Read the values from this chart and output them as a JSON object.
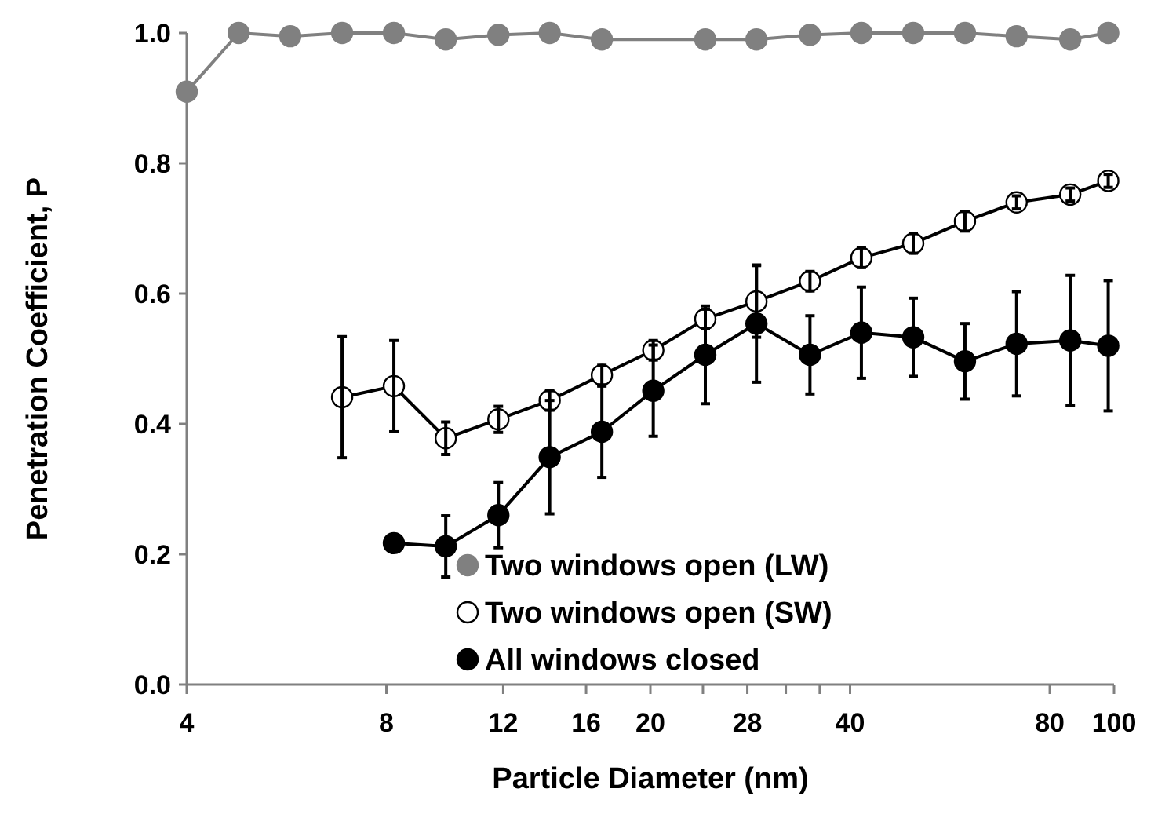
{
  "chart_data": {
    "type": "line",
    "xlabel": "Particle Diameter (nm)",
    "ylabel": "Penetration Coefficient, P",
    "log": "x",
    "marker": "circle",
    "legend": "bottom",
    "grid": false,
    "xlim": [
      4,
      100
    ],
    "xticks": [
      4,
      8,
      12,
      16,
      20,
      {
        "value": 24,
        "label": null
      },
      28,
      {
        "value": 32,
        "label": null
      },
      {
        "value": 36,
        "label": null
      },
      40,
      80,
      100
    ],
    "ylim": [
      0,
      1
    ],
    "yticks": [
      {
        "value": 0,
        "label": "0.0"
      },
      {
        "value": 0.2,
        "label": "0.2"
      },
      {
        "value": 0.4,
        "label": "0.4"
      },
      {
        "value": 0.6,
        "label": "0.6"
      },
      {
        "value": 0.8,
        "label": "0.8"
      },
      {
        "value": 1,
        "label": "1.0"
      }
    ],
    "series": [
      {
        "name": "Two windows open (LW)",
        "color": "#808080",
        "x": [
          4,
          4.79,
          5.73,
          6.86,
          8.21,
          9.83,
          11.8,
          14.1,
          16.9,
          24.2,
          28.9,
          34.8,
          41.6,
          49.8,
          59.6,
          71.3,
          85.9,
          98
        ],
        "values": [
          0.91,
          1.0,
          0.995,
          1.0,
          1.0,
          0.99,
          0.997,
          1.0,
          0.99,
          0.99,
          0.99,
          0.997,
          1.0,
          1.0,
          1.0,
          0.995,
          0.99,
          1.0
        ]
      },
      {
        "name": "Two windows open (SW)",
        "color": "#000000",
        "marker": "open circle",
        "x": [
          6.86,
          8.21,
          9.83,
          11.8,
          14.1,
          16.9,
          20.2,
          24.2,
          28.9,
          34.8,
          41.6,
          49.8,
          59.6,
          71.3,
          85.9,
          98
        ],
        "values": [
          0.441,
          0.458,
          0.378,
          0.407,
          0.436,
          0.475,
          0.513,
          0.561,
          0.588,
          0.619,
          0.655,
          0.677,
          0.711,
          0.74,
          0.752,
          0.773
        ],
        "errors": [
          0.093,
          0.07,
          0.025,
          0.02,
          0.015,
          0.015,
          0.015,
          0.015,
          0.055,
          0.015,
          0.015,
          0.015,
          0.015,
          0.01,
          0.01,
          0.01
        ]
      },
      {
        "name": "All windows closed",
        "color": "#000000",
        "x": [
          8.21,
          9.83,
          11.8,
          14.1,
          16.9,
          20.2,
          24.2,
          28.9,
          34.8,
          41.6,
          49.8,
          59.6,
          71.3,
          85.9,
          98
        ],
        "values": [
          0.217,
          0.212,
          0.26,
          0.349,
          0.388,
          0.451,
          0.506,
          0.554,
          0.506,
          0.54,
          0.533,
          0.496,
          0.523,
          0.528,
          0.52
        ],
        "errors": [
          null,
          0.047,
          0.05,
          0.087,
          0.07,
          0.07,
          0.075,
          0.09,
          0.06,
          0.07,
          0.06,
          0.058,
          0.08,
          0.1,
          0.1
        ]
      }
    ]
  }
}
